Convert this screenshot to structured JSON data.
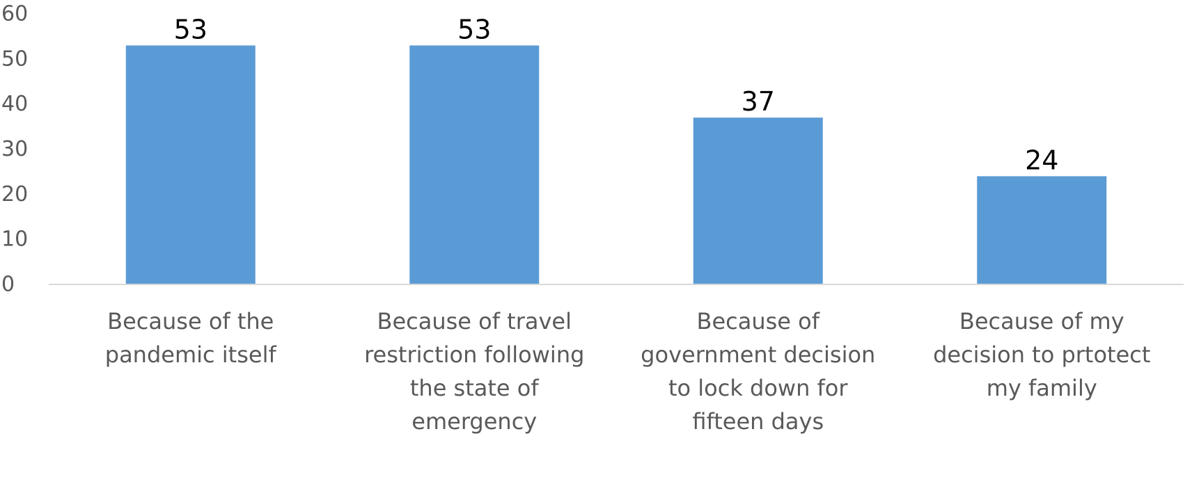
{
  "chart_data": {
    "type": "bar",
    "categories": [
      [
        "Because of the",
        "pandemic itself"
      ],
      [
        "Because of travel",
        "restriction following",
        "the state of",
        "emergency"
      ],
      [
        "Because of",
        "government decision",
        "to lock down for",
        "fifteen days"
      ],
      [
        "Because of my",
        "decision to prtotect",
        "my family"
      ]
    ],
    "values": [
      53,
      53,
      37,
      24
    ],
    "data_labels": [
      "53",
      "53",
      "37",
      "24"
    ],
    "yticks": [
      "0",
      "10",
      "20",
      "30",
      "40",
      "50",
      "60"
    ],
    "ylim": [
      0,
      60
    ],
    "title": "",
    "xlabel": "",
    "ylabel": "",
    "grid": false,
    "legend": "none",
    "bar_color": "#5B9BD5",
    "axis_color": "#D9D9D9"
  }
}
